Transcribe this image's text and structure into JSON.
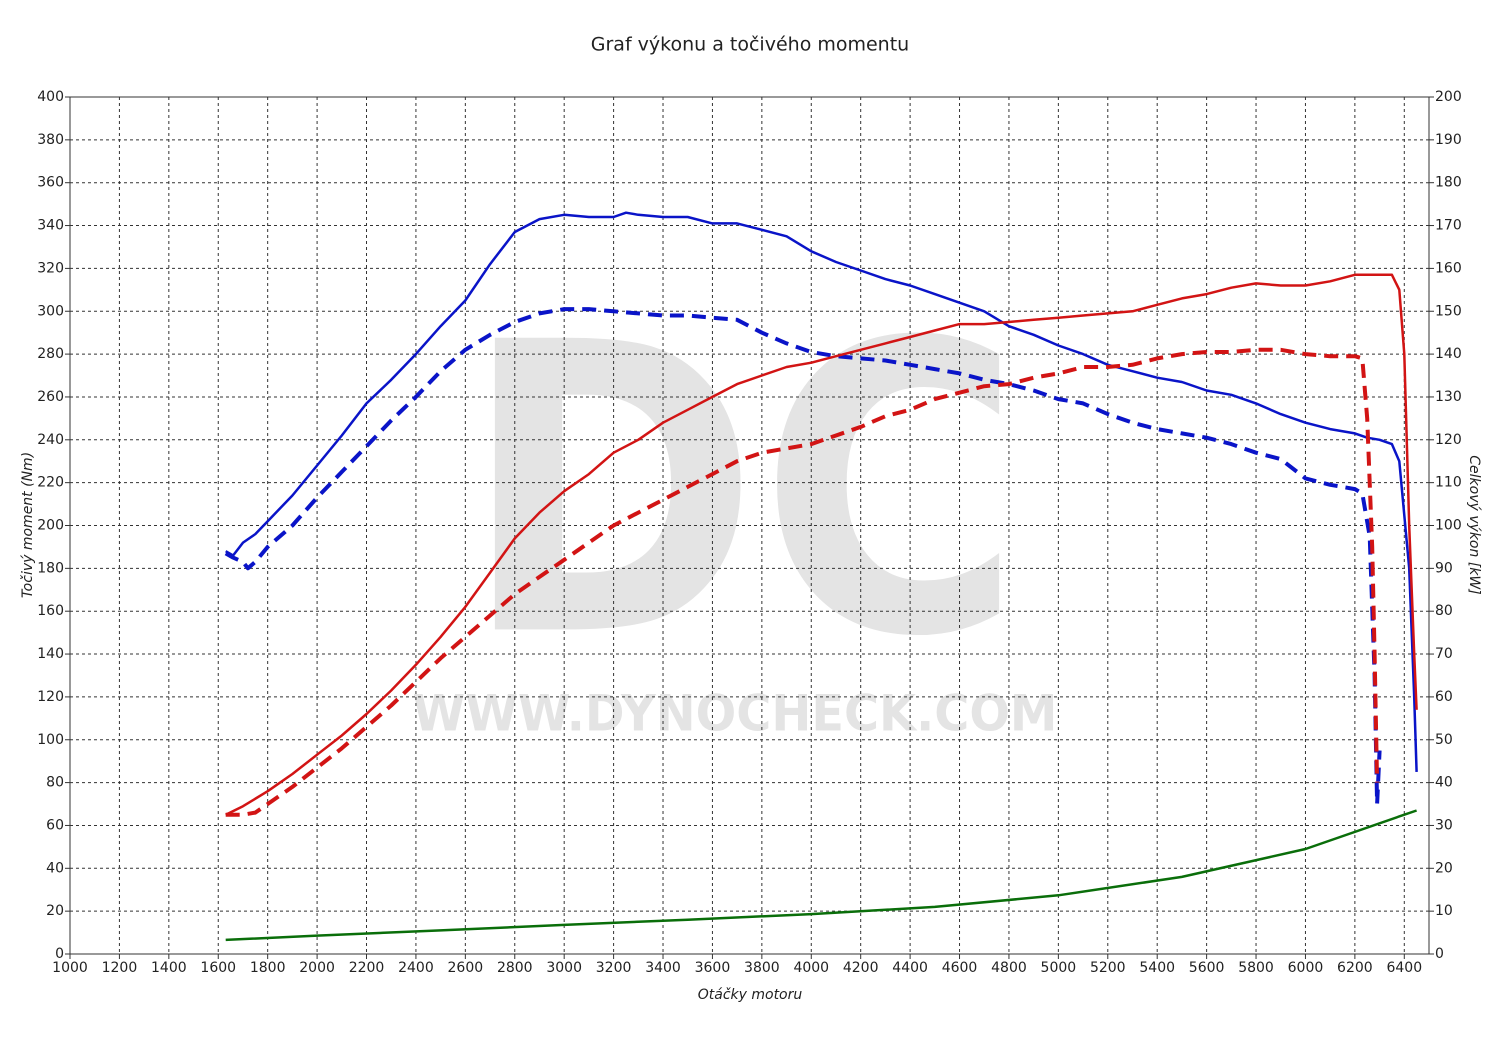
{
  "chart_data": {
    "type": "line",
    "title": "Graf výkonu a točivého momentu",
    "x_label": "Otáčky motoru",
    "y_label": "Točivý moment (Nm)",
    "y2_label": "Celkový výkon [kW]",
    "watermark": {
      "logo": "DC",
      "url": "WWW.DYNOCHECK.COM"
    },
    "xlim": [
      1000,
      6500
    ],
    "xticks": [
      1000,
      1200,
      1400,
      1600,
      1800,
      2000,
      2200,
      2400,
      2600,
      2800,
      3000,
      3200,
      3400,
      3600,
      3800,
      4000,
      4200,
      4400,
      4600,
      4800,
      5000,
      5200,
      5400,
      5600,
      5800,
      6000,
      6200,
      6400
    ],
    "ylim": [
      0,
      400
    ],
    "yticks": [
      0,
      20,
      40,
      60,
      80,
      100,
      120,
      140,
      160,
      180,
      200,
      220,
      240,
      260,
      280,
      300,
      320,
      340,
      360,
      380,
      400
    ],
    "y2lim": [
      0,
      200
    ],
    "y2ticks": [
      0,
      10,
      20,
      30,
      40,
      50,
      60,
      70,
      80,
      90,
      100,
      110,
      120,
      130,
      140,
      150,
      160,
      170,
      180,
      190,
      200
    ],
    "grid": true,
    "series": [
      {
        "color": "#0a14c8",
        "line_style": "solid",
        "x": [
          1630,
          1660,
          1700,
          1750,
          1800,
          1900,
          2000,
          2100,
          2200,
          2300,
          2400,
          2500,
          2600,
          2700,
          2800,
          2900,
          3000,
          3100,
          3200,
          3250,
          3300,
          3400,
          3500,
          3600,
          3700,
          3800,
          3900,
          4000,
          4100,
          4200,
          4300,
          4400,
          4500,
          4600,
          4700,
          4800,
          4900,
          5000,
          5100,
          5200,
          5300,
          5400,
          5500,
          5600,
          5700,
          5800,
          5900,
          6000,
          6100,
          6200,
          6250,
          6300,
          6350,
          6380,
          6420,
          6440,
          6450
        ],
        "values": [
          188,
          186,
          192,
          196,
          202,
          214,
          228,
          242,
          257,
          268,
          280,
          293,
          305,
          322,
          337,
          343,
          345,
          344,
          344,
          346,
          345,
          344,
          344,
          341,
          341,
          338,
          335,
          328,
          323,
          319,
          315,
          312,
          308,
          304,
          300,
          293,
          289,
          284,
          280,
          275,
          272,
          269,
          267,
          263,
          261,
          257,
          252,
          248,
          245,
          243,
          241,
          240,
          238,
          230,
          180,
          120,
          85
        ]
      },
      {
        "color": "#0a14c8",
        "line_style": "dashed",
        "x": [
          1630,
          1660,
          1700,
          1720,
          1750,
          1800,
          1900,
          2000,
          2100,
          2200,
          2300,
          2400,
          2500,
          2600,
          2700,
          2800,
          2900,
          3000,
          3100,
          3200,
          3300,
          3400,
          3500,
          3600,
          3700,
          3800,
          3900,
          4000,
          4100,
          4200,
          4300,
          4400,
          4500,
          4600,
          4700,
          4800,
          4900,
          5000,
          5100,
          5200,
          5300,
          5400,
          5500,
          5600,
          5700,
          5800,
          5900,
          6000,
          6100,
          6200,
          6230,
          6260,
          6280,
          6290,
          6300
        ],
        "values": [
          187,
          185,
          183,
          180,
          183,
          190,
          200,
          213,
          225,
          237,
          249,
          260,
          272,
          282,
          289,
          295,
          299,
          301,
          301,
          300,
          299,
          298,
          298,
          297,
          296,
          290,
          285,
          281,
          279,
          278,
          277,
          275,
          273,
          271,
          268,
          266,
          263,
          259,
          257,
          252,
          248,
          245,
          243,
          241,
          238,
          234,
          231,
          222,
          219,
          217,
          215,
          195,
          130,
          70,
          95
        ]
      },
      {
        "color": "#d21414",
        "line_style": "solid",
        "axis": "y2",
        "x": [
          1630,
          1700,
          1800,
          1900,
          2000,
          2100,
          2200,
          2300,
          2400,
          2500,
          2600,
          2700,
          2800,
          2900,
          3000,
          3100,
          3200,
          3300,
          3400,
          3500,
          3600,
          3700,
          3800,
          3900,
          4000,
          4100,
          4200,
          4300,
          4400,
          4500,
          4600,
          4700,
          4800,
          4900,
          5000,
          5100,
          5200,
          5300,
          5400,
          5500,
          5600,
          5700,
          5800,
          5900,
          6000,
          6100,
          6200,
          6300,
          6350,
          6380,
          6400,
          6420,
          6440,
          6450
        ],
        "values": [
          32.5,
          34.5,
          38,
          42,
          46.5,
          51,
          56,
          61.5,
          67.5,
          74,
          81,
          89,
          97,
          103,
          108,
          112,
          117,
          120,
          124,
          127,
          130,
          133,
          135,
          137,
          138,
          139.5,
          141,
          142.5,
          144,
          145.5,
          147,
          147,
          147.5,
          148,
          148.5,
          149,
          149.5,
          150,
          151.5,
          153,
          154,
          155.5,
          156.5,
          156,
          156,
          157,
          158.5,
          158.5,
          158.5,
          155,
          140,
          100,
          70,
          57
        ]
      },
      {
        "color": "#d21414",
        "line_style": "dashed",
        "axis": "y2",
        "x": [
          1630,
          1700,
          1750,
          1800,
          1900,
          2000,
          2100,
          2200,
          2300,
          2400,
          2500,
          2600,
          2700,
          2800,
          2900,
          3000,
          3100,
          3200,
          3300,
          3400,
          3500,
          3600,
          3700,
          3800,
          3900,
          4000,
          4100,
          4200,
          4300,
          4400,
          4500,
          4600,
          4700,
          4800,
          4900,
          5000,
          5100,
          5200,
          5300,
          5400,
          5500,
          5600,
          5700,
          5800,
          5900,
          6000,
          6100,
          6200,
          6230,
          6250,
          6270,
          6280,
          6290
        ],
        "values": [
          32.5,
          32.5,
          33,
          35,
          39,
          43.5,
          48,
          53,
          58,
          63.5,
          69,
          74,
          79,
          84,
          88,
          92,
          96,
          100,
          103,
          106,
          109,
          112,
          115,
          117,
          118,
          119,
          121,
          123,
          125.5,
          127,
          129.5,
          131,
          132.5,
          133,
          134.5,
          135.5,
          137,
          137,
          137.5,
          139,
          140,
          140.5,
          140.5,
          141,
          141,
          140,
          139.5,
          139.5,
          139,
          125,
          95,
          70,
          40
        ]
      },
      {
        "color": "#0a6e0a",
        "line_style": "solid",
        "axis": "y2",
        "x": [
          1630,
          2000,
          2500,
          3000,
          3500,
          4000,
          4500,
          5000,
          5500,
          6000,
          6400,
          6450
        ],
        "values": [
          3.3,
          4.3,
          5.5,
          6.8,
          8,
          9.3,
          11,
          13.7,
          18,
          24.5,
          32.5,
          33.5
        ]
      }
    ]
  }
}
